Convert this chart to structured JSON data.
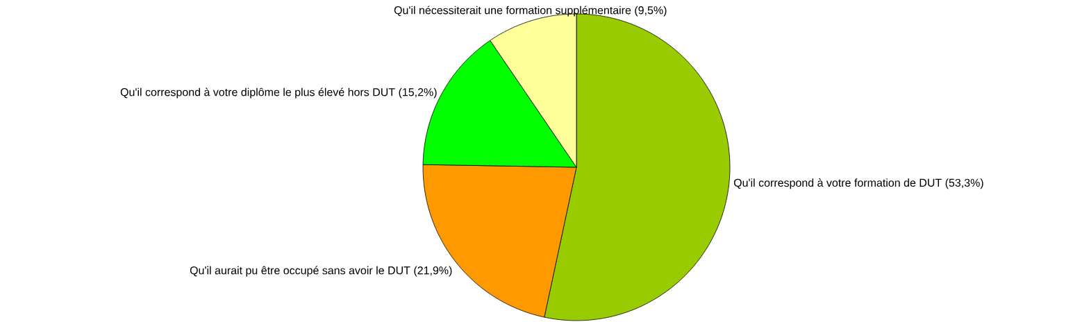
{
  "chart_data": {
    "type": "pie",
    "categories": [
      "Qu'il correspond à votre formation de DUT (53,3%)",
      "Qu'il aurait pu être occupé sans avoir le DUT (21,9%)",
      "Qu'il correspond à votre diplôme le plus élevé hors DUT (15,2%)",
      "Qu'il nécessiterait une formation supplémentaire (9,5%)"
    ],
    "values": [
      53.3,
      21.9,
      15.2,
      9.5
    ],
    "colors": [
      "#99cc00",
      "#ff9900",
      "#00ff00",
      "#ffff99"
    ]
  }
}
